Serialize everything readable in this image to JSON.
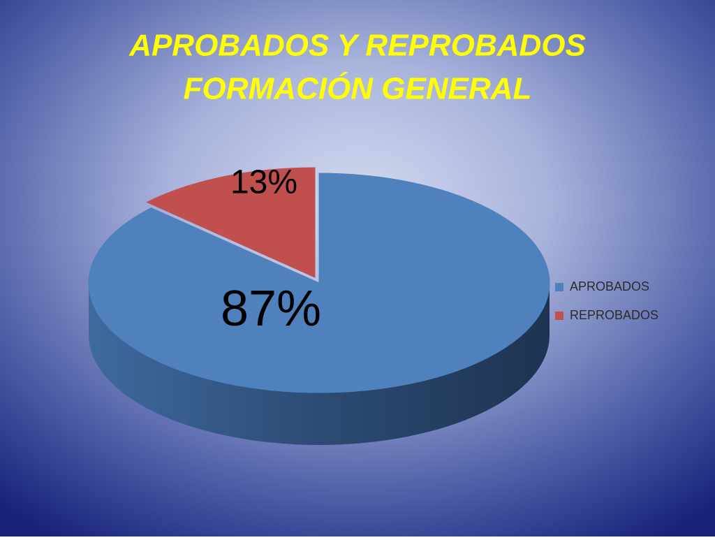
{
  "chart_data": {
    "type": "pie3d",
    "title": [
      "APROBADOS Y REPROBADOS",
      "FORMACIÓN GENERAL"
    ],
    "categories": [
      "APROBADOS",
      "REPROBADOS"
    ],
    "values": [
      87,
      13
    ],
    "value_labels": [
      "87%",
      "13%"
    ],
    "colors": [
      "#4f81bd",
      "#c0504d"
    ],
    "legend": "right"
  }
}
